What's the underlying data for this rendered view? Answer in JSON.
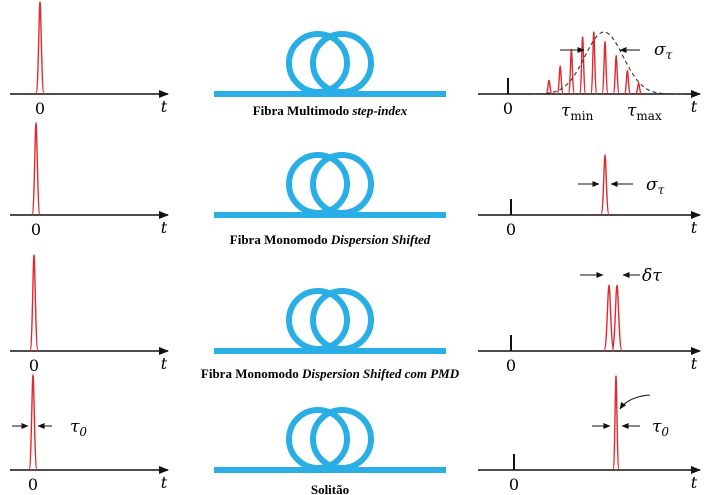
{
  "colors": {
    "pulse": "#e0282e",
    "fiber": "#29aee6",
    "axis": "#111111",
    "envelope": "#333333"
  },
  "axis_labels": {
    "origin": "0",
    "time": "t"
  },
  "rows": [
    {
      "fiber_label_plain": "Fibra Multimodo ",
      "fiber_label_italic": "step-index",
      "output": {
        "type": "multipath",
        "relative_heights": [
          0.22,
          0.45,
          0.72,
          0.92,
          1.0,
          0.85,
          0.62,
          0.38,
          0.18
        ],
        "envelope": true
      },
      "annotations": {
        "width_symbol": "σ",
        "width_subscript": "τ",
        "min_label": "τ",
        "min_sub": "min",
        "max_label": "τ",
        "max_sub": "max"
      }
    },
    {
      "fiber_label_plain": "Fibra Monomodo ",
      "fiber_label_italic": "Dispersion Shifted",
      "output": {
        "type": "single"
      },
      "annotations": {
        "width_symbol": "σ",
        "width_subscript": "τ"
      }
    },
    {
      "fiber_label_plain": "Fibra Monomodo ",
      "fiber_label_italic": "Dispersion Shifted com PMD",
      "output": {
        "type": "double"
      },
      "annotations": {
        "width_symbol": "δτ"
      }
    },
    {
      "fiber_label_plain": "Solitão",
      "fiber_label_italic": "",
      "output": {
        "type": "soliton"
      },
      "annotations": {
        "input_width_symbol": "τ",
        "input_width_subscript": "0",
        "output_width_symbol": "τ",
        "output_width_subscript": "0"
      }
    }
  ]
}
